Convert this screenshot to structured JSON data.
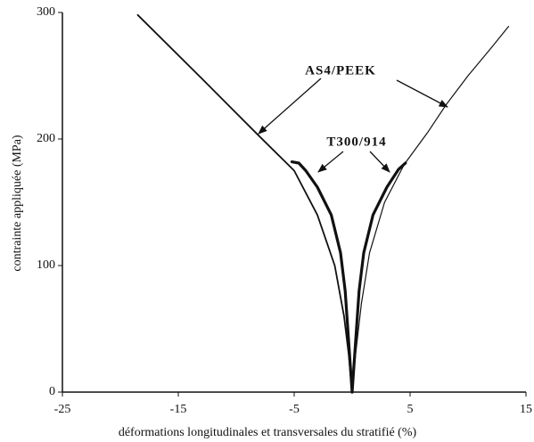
{
  "chart_data": {
    "type": "line",
    "xlabel": "déformations longitudinales et transversales du stratifié (%)",
    "ylabel": "contrainte appliquée (MPa)",
    "xlim": [
      -25,
      15
    ],
    "xticks": [
      -25,
      -15,
      -5,
      5,
      15
    ],
    "ylim": [
      0,
      300
    ],
    "yticks": [
      0,
      100,
      200,
      300
    ],
    "annotations": [
      "AS4/PEEK",
      "T300/914"
    ],
    "series": [
      {
        "name": "AS4/PEEK",
        "color": "#111111",
        "x": [
          0,
          -0.3,
          -0.7,
          -1.5,
          -3,
          -5,
          -8.1,
          -13,
          -18.5
        ],
        "values": [
          0,
          30,
          60,
          100,
          140,
          175,
          203,
          248,
          298
        ]
      },
      {
        "name": "AS4/PEEK",
        "color": "#111111",
        "x": [
          0,
          0.3,
          0.8,
          1.5,
          2.8,
          4.5,
          6.5,
          8.1,
          10,
          12,
          13.5
        ],
        "values": [
          0,
          30,
          70,
          110,
          150,
          180,
          205,
          227,
          250,
          272,
          289
        ]
      },
      {
        "name": "T300/914",
        "color": "#111111",
        "x": [
          0,
          -0.3,
          -0.6,
          -1,
          -1.8,
          -3,
          -4,
          -4.6,
          -5.2
        ],
        "values": [
          0,
          40,
          80,
          110,
          140,
          162,
          175,
          181,
          182
        ]
      },
      {
        "name": "T300/914",
        "color": "#111111",
        "x": [
          0,
          0.3,
          0.6,
          1,
          1.8,
          3,
          4,
          4.6
        ],
        "values": [
          0,
          40,
          80,
          110,
          140,
          162,
          176,
          181
        ]
      }
    ]
  }
}
